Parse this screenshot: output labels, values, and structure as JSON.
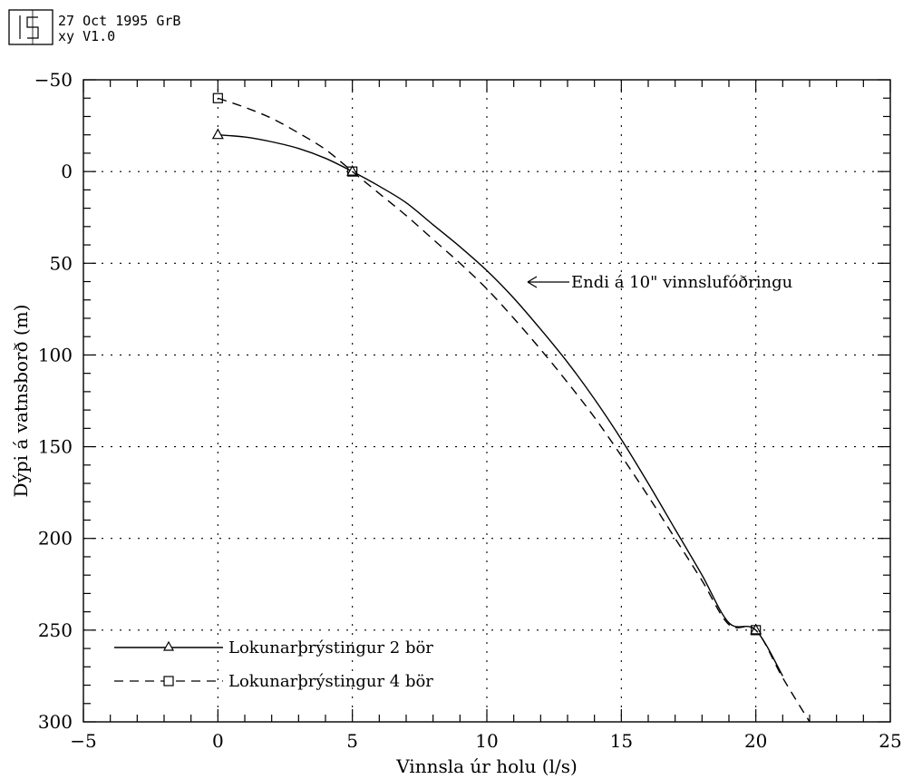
{
  "header": {
    "date_line": "27 Oct 1995 GrB",
    "version_line": "xy V1.0"
  },
  "chart_data": {
    "type": "line",
    "xlabel": "Vinnsla úr holu (l/s)",
    "ylabel": "Dýpi á vatnsborð (m)",
    "xlim": [
      -5,
      25
    ],
    "ylim": [
      -50,
      300
    ],
    "y_inverted": true,
    "xticks": [
      -5,
      0,
      5,
      10,
      15,
      20,
      25
    ],
    "yticks": [
      -50,
      0,
      50,
      100,
      150,
      200,
      250,
      300
    ],
    "grid": true,
    "legend_position": "bottom-left",
    "series": [
      {
        "name": "Lokunarþrýstingur 2 bör",
        "style": "solid",
        "marker": "triangle",
        "x": [
          0,
          1,
          2,
          3,
          4,
          5,
          6,
          7,
          8,
          9,
          10,
          11,
          12,
          13,
          14,
          15,
          16,
          17,
          18,
          19,
          20,
          21
        ],
        "y": [
          -20,
          -18.8,
          -16.2,
          -12.6,
          -7.2,
          0,
          8,
          17,
          29,
          41,
          54,
          69,
          86,
          104,
          124,
          146,
          170,
          195,
          220,
          246,
          250,
          275
        ],
        "marker_points": {
          "x": [
            0,
            5,
            20
          ],
          "y": [
            -20,
            0,
            250
          ]
        }
      },
      {
        "name": "Lokunarþrýstingur 4 bör",
        "style": "dashed",
        "marker": "square",
        "x": [
          0,
          1,
          2,
          3,
          4,
          5,
          6,
          7,
          8,
          9,
          10,
          11,
          12,
          13,
          14,
          15,
          16,
          17,
          18,
          19,
          20,
          21,
          22
        ],
        "y": [
          -40,
          -35,
          -29,
          -21,
          -12,
          0,
          12,
          24,
          37,
          50,
          64,
          80,
          97,
          115,
          134,
          155,
          177,
          200,
          223,
          247,
          250,
          276,
          300
        ],
        "marker_points": {
          "x": [
            0,
            5,
            20
          ],
          "y": [
            -40,
            0,
            250
          ]
        }
      }
    ],
    "annotation": {
      "text": "Endi á 10\" vinnslufóðringu",
      "x": 11.5,
      "y": 60
    }
  }
}
